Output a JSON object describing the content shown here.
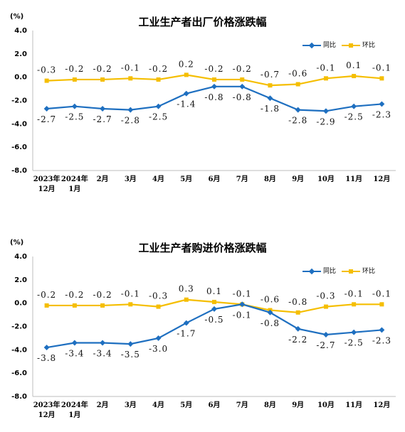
{
  "colors": {
    "series_a": "#1e6fc0",
    "series_b": "#f5be00",
    "axis": "#bdbdbd"
  },
  "chart_data": [
    {
      "type": "line",
      "title": "工业生产者出厂价格涨跌幅",
      "unit_label": "(%)",
      "categories": [
        [
          "2023年",
          "12月"
        ],
        [
          "2024年",
          "1月"
        ],
        [
          "2月"
        ],
        [
          "3月"
        ],
        [
          "4月"
        ],
        [
          "5月"
        ],
        [
          "6月"
        ],
        [
          "7月"
        ],
        [
          "8月"
        ],
        [
          "9月"
        ],
        [
          "10月"
        ],
        [
          "11月"
        ],
        [
          "12月"
        ]
      ],
      "ylim": [
        -8.0,
        4.0
      ],
      "yticks": [
        "4.0",
        "2.0",
        "0.0",
        "-2.0",
        "-4.0",
        "-6.0",
        "-8.0"
      ],
      "grid": false,
      "legend": "top-right",
      "series": [
        {
          "name": "同比",
          "values": [
            -2.7,
            -2.5,
            -2.7,
            -2.8,
            -2.5,
            -1.4,
            -0.8,
            -0.8,
            -1.8,
            -2.8,
            -2.9,
            -2.5,
            -2.3
          ],
          "labels": [
            "-2.7",
            "-2.5",
            "-2.7",
            "-2.8",
            "-2.5",
            "-1.4",
            "-0.8",
            "-0.8",
            "-1.8",
            "-2.8",
            "-2.9",
            "-2.5",
            "-2.3"
          ]
        },
        {
          "name": "环比",
          "values": [
            -0.3,
            -0.2,
            -0.2,
            -0.1,
            -0.2,
            0.2,
            -0.2,
            -0.2,
            -0.7,
            -0.6,
            -0.1,
            0.1,
            -0.1
          ],
          "labels": [
            "-0.3",
            "-0.2",
            "-0.2",
            "-0.1",
            "-0.2",
            "0.2",
            "-0.2",
            "-0.2",
            "-0.7",
            "-0.6",
            "-0.1",
            "0.1",
            "-0.1"
          ]
        }
      ]
    },
    {
      "type": "line",
      "title": "工业生产者购进价格涨跌幅",
      "unit_label": "(%)",
      "categories": [
        [
          "2023年",
          "12月"
        ],
        [
          "2024年",
          "1月"
        ],
        [
          "2月"
        ],
        [
          "3月"
        ],
        [
          "4月"
        ],
        [
          "5月"
        ],
        [
          "6月"
        ],
        [
          "7月"
        ],
        [
          "8月"
        ],
        [
          "9月"
        ],
        [
          "10月"
        ],
        [
          "11月"
        ],
        [
          "12月"
        ]
      ],
      "ylim": [
        -8.0,
        4.0
      ],
      "yticks": [
        "4.0",
        "2.0",
        "0.0",
        "-2.0",
        "-4.0",
        "-6.0",
        "-8.0"
      ],
      "grid": false,
      "legend": "top-right",
      "series": [
        {
          "name": "同比",
          "values": [
            -3.8,
            -3.4,
            -3.4,
            -3.5,
            -3.0,
            -1.7,
            -0.5,
            -0.1,
            -0.8,
            -2.2,
            -2.7,
            -2.5,
            -2.3
          ],
          "labels": [
            "-3.8",
            "-3.4",
            "-3.4",
            "-3.5",
            "-3.0",
            "-1.7",
            "-0.5",
            "-0.1",
            "-0.8",
            "-2.2",
            "-2.7",
            "-2.5",
            "-2.3"
          ]
        },
        {
          "name": "环比",
          "values": [
            -0.2,
            -0.2,
            -0.2,
            -0.1,
            -0.3,
            0.3,
            0.1,
            -0.1,
            -0.6,
            -0.8,
            -0.3,
            -0.1,
            -0.1
          ],
          "labels": [
            "-0.2",
            "-0.2",
            "-0.2",
            "-0.1",
            "-0.3",
            "0.3",
            "0.1",
            "-0.1",
            "-0.6",
            "-0.8",
            "-0.3",
            "-0.1",
            "-0.1"
          ]
        }
      ]
    }
  ]
}
